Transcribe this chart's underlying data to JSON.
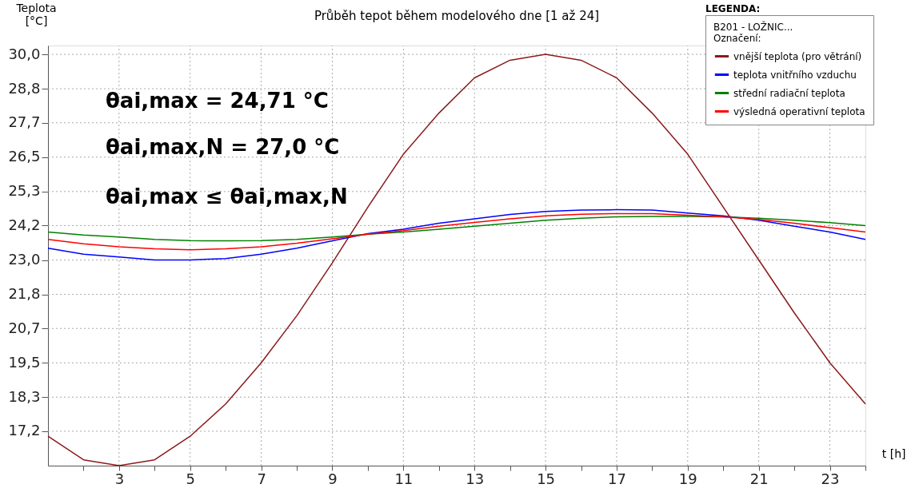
{
  "chart_data": {
    "type": "line",
    "title": "Průběh tepot během modelového dne [1 až 24]",
    "xlabel": "t [h]",
    "ylabel": "Teplota [°C]",
    "legend_title": "Označení:",
    "legend": "top right",
    "grid": true,
    "x": [
      1,
      2,
      3,
      4,
      5,
      6,
      7,
      8,
      9,
      10,
      11,
      12,
      13,
      14,
      15,
      16,
      17,
      18,
      19,
      20,
      21,
      22,
      23,
      24
    ],
    "xlim": [
      1,
      24
    ],
    "xticks": [
      {
        "value": 2,
        "label": null
      },
      3,
      {
        "value": 4,
        "label": null
      },
      5,
      {
        "value": 6,
        "label": null
      },
      7,
      {
        "value": 8,
        "label": null
      },
      9,
      {
        "value": 10,
        "label": null
      },
      11,
      {
        "value": 12,
        "label": null
      },
      13,
      {
        "value": 14,
        "label": null
      },
      15,
      {
        "value": 16,
        "label": null
      },
      17,
      {
        "value": 18,
        "label": null
      },
      19,
      {
        "value": 20,
        "label": null
      },
      21,
      {
        "value": 22,
        "label": null
      },
      23,
      {
        "value": 24,
        "label": null
      }
    ],
    "ylim": [
      16,
      30.3
    ],
    "yticks": [
      {
        "value": 17.17,
        "label": "17,2"
      },
      {
        "value": 18.33,
        "label": "18,3"
      },
      {
        "value": 19.5,
        "label": "19,5"
      },
      {
        "value": 20.67,
        "label": "20,7"
      },
      {
        "value": 21.83,
        "label": "21,8"
      },
      {
        "value": 23.0,
        "label": "23,0"
      },
      {
        "value": 24.17,
        "label": "24,2"
      },
      {
        "value": 25.33,
        "label": "25,3"
      },
      {
        "value": 26.5,
        "label": "26,5"
      },
      {
        "value": 27.67,
        "label": "27,7"
      },
      {
        "value": 28.83,
        "label": "28,8"
      },
      {
        "value": 30.0,
        "label": "30,0"
      }
    ],
    "series": [
      {
        "name": "vnější teplota (pro větrání)",
        "color": "#8b1a1a",
        "values": [
          17.0,
          16.2,
          16.0,
          16.2,
          17.0,
          18.1,
          19.5,
          21.1,
          22.9,
          24.8,
          26.6,
          28.0,
          29.2,
          29.8,
          30.0,
          29.8,
          29.2,
          28.0,
          26.6,
          24.8,
          23.0,
          21.2,
          19.5,
          18.1
        ]
      },
      {
        "name": "teplota vnitřního vzduchu",
        "color": "#0000ff",
        "values": [
          23.4,
          23.2,
          23.1,
          23.0,
          23.0,
          23.05,
          23.2,
          23.4,
          23.65,
          23.9,
          24.05,
          24.25,
          24.4,
          24.55,
          24.65,
          24.7,
          24.71,
          24.7,
          24.6,
          24.5,
          24.35,
          24.15,
          23.95,
          23.7
        ]
      },
      {
        "name": "střední radiační teplota",
        "color": "#008000",
        "values": [
          23.95,
          23.85,
          23.78,
          23.7,
          23.66,
          23.65,
          23.66,
          23.7,
          23.78,
          23.88,
          23.95,
          24.05,
          24.15,
          24.25,
          24.35,
          24.42,
          24.47,
          24.48,
          24.48,
          24.47,
          24.42,
          24.35,
          24.27,
          24.17
        ]
      },
      {
        "name": "výsledná operativní teplota",
        "color": "#ff0000",
        "values": [
          23.7,
          23.55,
          23.45,
          23.38,
          23.35,
          23.38,
          23.45,
          23.57,
          23.72,
          23.88,
          24.0,
          24.15,
          24.28,
          24.4,
          24.5,
          24.56,
          24.58,
          24.58,
          24.52,
          24.47,
          24.38,
          24.25,
          24.1,
          23.95
        ]
      }
    ],
    "annotations": [
      "θai,max = 24,71 °C",
      "θai,max,N = 27,0 °C",
      "θai,max ≤ θai,max,N",
      "LEGENDA:",
      "B201 - LOŽNIC..."
    ]
  }
}
